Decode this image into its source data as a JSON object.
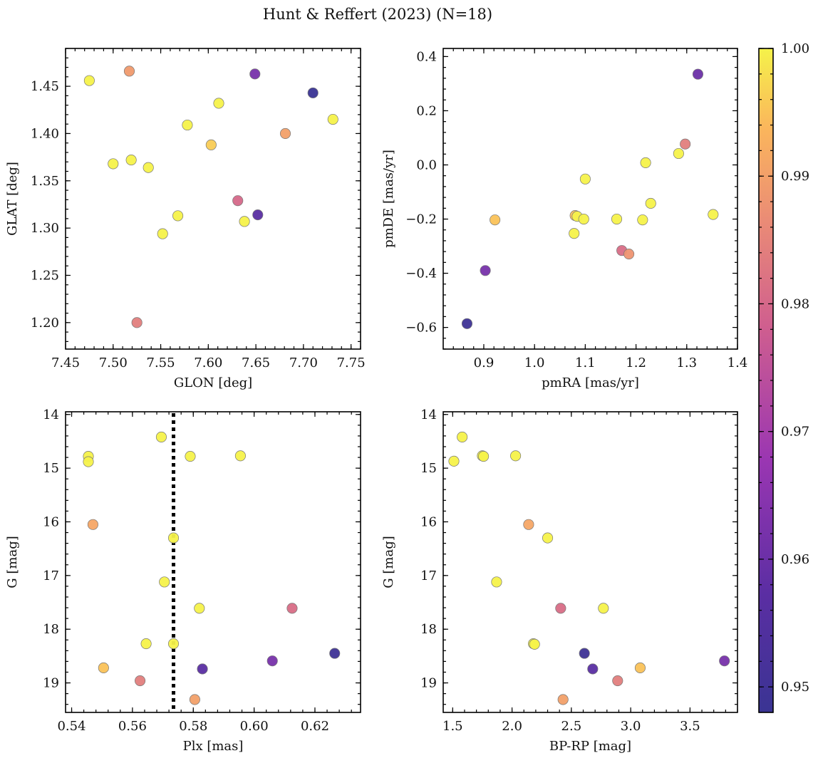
{
  "title": "Hunt & Reffert (2023) (N=18)",
  "colorbar": {
    "range": [
      0.948,
      1.0
    ],
    "ticks": [
      0.95,
      0.96,
      0.97,
      0.98,
      0.99,
      1.0
    ],
    "tick_labels": [
      "0.95",
      "0.96",
      "0.97",
      "0.98",
      "0.99",
      "1.00"
    ],
    "colormap": "plasma"
  },
  "chart_data": [
    {
      "type": "scatter",
      "xlabel": "GLON [deg]",
      "ylabel": "GLAT [deg]",
      "xlim": [
        7.45,
        7.76
      ],
      "ylim": [
        1.172,
        1.49
      ],
      "xticks": [
        7.45,
        7.5,
        7.55,
        7.6,
        7.65,
        7.7,
        7.75
      ],
      "xtick_labels": [
        "7.45",
        "7.50",
        "7.55",
        "7.60",
        "7.65",
        "7.70",
        "7.75"
      ],
      "yticks": [
        1.2,
        1.25,
        1.3,
        1.35,
        1.4,
        1.45
      ],
      "ytick_labels": [
        "1.20",
        "1.25",
        "1.30",
        "1.35",
        "1.40",
        "1.45"
      ],
      "points": [
        {
          "x": 7.475,
          "y": 1.456,
          "c": 1.0
        },
        {
          "x": 7.517,
          "y": 1.466,
          "c": 0.989
        },
        {
          "x": 7.649,
          "y": 1.463,
          "c": 0.962
        },
        {
          "x": 7.71,
          "y": 1.443,
          "c": 0.948
        },
        {
          "x": 7.611,
          "y": 1.432,
          "c": 1.0
        },
        {
          "x": 7.731,
          "y": 1.415,
          "c": 1.0
        },
        {
          "x": 7.578,
          "y": 1.409,
          "c": 1.0
        },
        {
          "x": 7.681,
          "y": 1.4,
          "c": 0.99
        },
        {
          "x": 7.603,
          "y": 1.388,
          "c": 0.996
        },
        {
          "x": 7.519,
          "y": 1.372,
          "c": 1.0
        },
        {
          "x": 7.5,
          "y": 1.368,
          "c": 1.0
        },
        {
          "x": 7.537,
          "y": 1.364,
          "c": 1.0
        },
        {
          "x": 7.631,
          "y": 1.329,
          "c": 0.98
        },
        {
          "x": 7.568,
          "y": 1.313,
          "c": 1.0
        },
        {
          "x": 7.652,
          "y": 1.314,
          "c": 0.957
        },
        {
          "x": 7.638,
          "y": 1.307,
          "c": 1.0
        },
        {
          "x": 7.552,
          "y": 1.294,
          "c": 1.0
        },
        {
          "x": 7.525,
          "y": 1.2,
          "c": 0.984
        }
      ]
    },
    {
      "type": "scatter",
      "xlabel": "pmRA [mas/yr]",
      "ylabel": "pmDE [mas/yr]",
      "xlim": [
        0.82,
        1.4
      ],
      "ylim": [
        -0.68,
        0.43
      ],
      "xticks": [
        0.9,
        1.0,
        1.1,
        1.2,
        1.3,
        1.4
      ],
      "xtick_labels": [
        "0.9",
        "1.0",
        "1.1",
        "1.2",
        "1.3",
        "1.4"
      ],
      "yticks": [
        -0.6,
        -0.4,
        -0.2,
        0.0,
        0.2,
        0.4
      ],
      "ytick_labels": [
        "−0.6",
        "−0.4",
        "−0.2",
        "0.0",
        "0.2",
        "0.4"
      ],
      "points": [
        {
          "x": 1.322,
          "y": 0.335,
          "c": 0.96
        },
        {
          "x": 1.297,
          "y": 0.077,
          "c": 0.984
        },
        {
          "x": 1.284,
          "y": 0.042,
          "c": 1.0
        },
        {
          "x": 1.219,
          "y": 0.008,
          "c": 1.0
        },
        {
          "x": 1.1,
          "y": -0.052,
          "c": 1.0
        },
        {
          "x": 1.229,
          "y": -0.142,
          "c": 1.0
        },
        {
          "x": 1.352,
          "y": -0.183,
          "c": 1.0
        },
        {
          "x": 1.08,
          "y": -0.187,
          "c": 0.995
        },
        {
          "x": 1.084,
          "y": -0.19,
          "c": 1.0
        },
        {
          "x": 1.097,
          "y": -0.2,
          "c": 1.0
        },
        {
          "x": 1.162,
          "y": -0.2,
          "c": 1.0
        },
        {
          "x": 1.213,
          "y": -0.203,
          "c": 1.0
        },
        {
          "x": 0.922,
          "y": -0.203,
          "c": 0.995
        },
        {
          "x": 1.078,
          "y": -0.253,
          "c": 1.0
        },
        {
          "x": 1.172,
          "y": -0.316,
          "c": 0.981
        },
        {
          "x": 1.186,
          "y": -0.329,
          "c": 0.988
        },
        {
          "x": 0.903,
          "y": -0.39,
          "c": 0.962
        },
        {
          "x": 0.867,
          "y": -0.586,
          "c": 0.949
        }
      ]
    },
    {
      "type": "scatter",
      "xlabel": "Plx [mas]",
      "ylabel": "G [mag]",
      "xlim": [
        0.538,
        0.635
      ],
      "ylim": [
        19.55,
        13.95
      ],
      "y_inverted": true,
      "xticks": [
        0.54,
        0.56,
        0.58,
        0.6,
        0.62
      ],
      "xtick_labels": [
        "0.54",
        "0.56",
        "0.58",
        "0.60",
        "0.62"
      ],
      "yticks": [
        14,
        15,
        16,
        17,
        18,
        19
      ],
      "ytick_labels": [
        "14",
        "15",
        "16",
        "17",
        "18",
        "19"
      ],
      "vline": {
        "x": 0.5735,
        "style": "dotted"
      },
      "points": [
        {
          "x": 0.5695,
          "y": 14.42,
          "c": 1.0
        },
        {
          "x": 0.5455,
          "y": 14.78,
          "c": 1.0
        },
        {
          "x": 0.5455,
          "y": 14.88,
          "c": 1.0
        },
        {
          "x": 0.579,
          "y": 14.78,
          "c": 1.0
        },
        {
          "x": 0.5955,
          "y": 14.77,
          "c": 1.0
        },
        {
          "x": 0.547,
          "y": 16.05,
          "c": 0.991
        },
        {
          "x": 0.5735,
          "y": 16.3,
          "c": 1.0
        },
        {
          "x": 0.5705,
          "y": 17.12,
          "c": 1.0
        },
        {
          "x": 0.582,
          "y": 17.61,
          "c": 1.0
        },
        {
          "x": 0.6125,
          "y": 17.61,
          "c": 0.981
        },
        {
          "x": 0.5645,
          "y": 18.27,
          "c": 1.0
        },
        {
          "x": 0.5735,
          "y": 18.27,
          "c": 1.0
        },
        {
          "x": 0.6265,
          "y": 18.45,
          "c": 0.949
        },
        {
          "x": 0.606,
          "y": 18.59,
          "c": 0.962
        },
        {
          "x": 0.5505,
          "y": 18.72,
          "c": 0.995
        },
        {
          "x": 0.583,
          "y": 18.74,
          "c": 0.957
        },
        {
          "x": 0.5625,
          "y": 18.96,
          "c": 0.984
        },
        {
          "x": 0.5805,
          "y": 19.31,
          "c": 0.99
        }
      ]
    },
    {
      "type": "scatter",
      "xlabel": "BP-RP [mag]",
      "ylabel": "G [mag]",
      "xlim": [
        1.42,
        3.9
      ],
      "ylim": [
        19.55,
        13.95
      ],
      "y_inverted": true,
      "xticks": [
        1.5,
        2.0,
        2.5,
        3.0,
        3.5
      ],
      "xtick_labels": [
        "1.5",
        "2.0",
        "2.5",
        "3.0",
        "3.5"
      ],
      "yticks": [
        14,
        15,
        16,
        17,
        18,
        19
      ],
      "ytick_labels": [
        "14",
        "15",
        "16",
        "17",
        "18",
        "19"
      ],
      "points": [
        {
          "x": 1.58,
          "y": 14.42,
          "c": 1.0
        },
        {
          "x": 1.75,
          "y": 14.77,
          "c": 1.0
        },
        {
          "x": 1.76,
          "y": 14.78,
          "c": 1.0
        },
        {
          "x": 2.03,
          "y": 14.77,
          "c": 1.0
        },
        {
          "x": 1.51,
          "y": 14.87,
          "c": 1.0
        },
        {
          "x": 2.14,
          "y": 16.05,
          "c": 0.991
        },
        {
          "x": 2.3,
          "y": 16.3,
          "c": 1.0
        },
        {
          "x": 1.87,
          "y": 17.12,
          "c": 1.0
        },
        {
          "x": 2.41,
          "y": 17.61,
          "c": 0.981
        },
        {
          "x": 2.77,
          "y": 17.61,
          "c": 1.0
        },
        {
          "x": 2.18,
          "y": 18.27,
          "c": 1.0
        },
        {
          "x": 2.19,
          "y": 18.28,
          "c": 1.0
        },
        {
          "x": 2.61,
          "y": 18.45,
          "c": 0.949
        },
        {
          "x": 3.79,
          "y": 18.59,
          "c": 0.962
        },
        {
          "x": 3.08,
          "y": 18.72,
          "c": 0.995
        },
        {
          "x": 2.68,
          "y": 18.74,
          "c": 0.957
        },
        {
          "x": 2.89,
          "y": 18.96,
          "c": 0.984
        },
        {
          "x": 2.43,
          "y": 19.31,
          "c": 0.99
        }
      ]
    }
  ]
}
